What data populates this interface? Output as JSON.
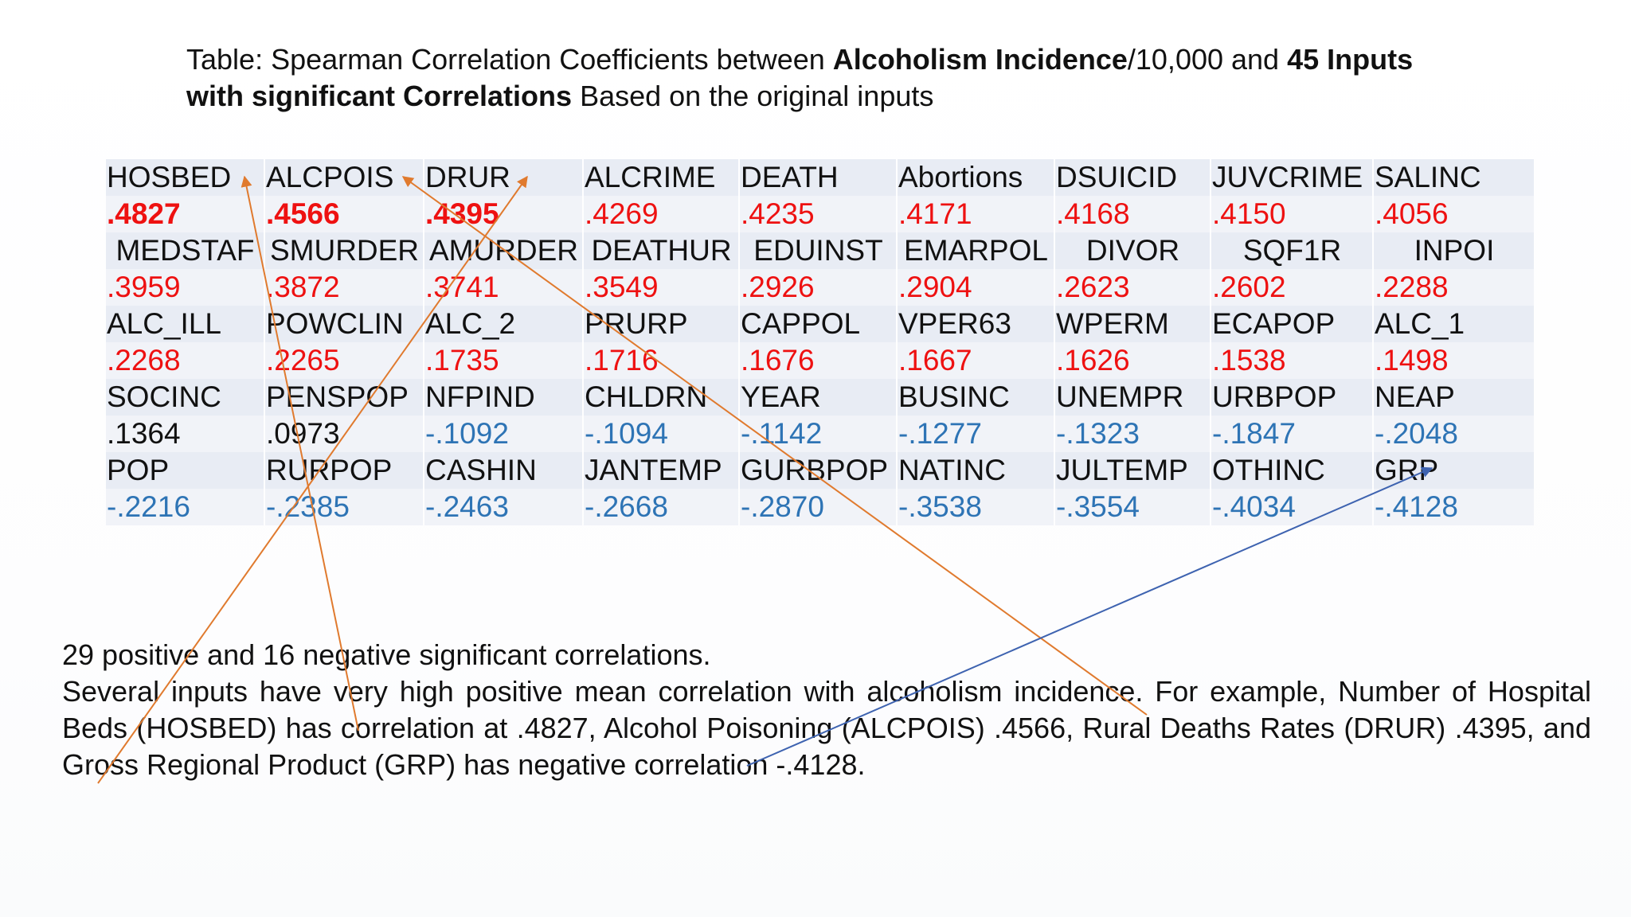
{
  "title": {
    "p1": "Table: Spearman Correlation Coefficients between ",
    "b1": "Alcoholism Incidence",
    "p2": "/10,000 and ",
    "b2": "45 Inputs with significant Correlations",
    "p3": " Based on the original inputs"
  },
  "table": {
    "rows": [
      {
        "names": [
          "HOSBED",
          "ALCPOIS",
          "DRUR",
          "ALCRIME",
          "DEATH",
          "Abortions",
          "DSUICID",
          "JUVCRIME",
          "SALINC"
        ],
        "values": [
          ".4827",
          ".4566",
          ".4395",
          ".4269",
          ".4235",
          ".4171",
          ".4168",
          ".4150",
          ".4056"
        ],
        "value_kinds": [
          "pos-bold",
          "pos-bold",
          "pos-bold",
          "pos",
          "pos",
          "pos",
          "pos",
          "pos",
          "pos"
        ]
      },
      {
        "names": [
          "MEDSTAF",
          "SMURDER",
          "AMURDER",
          "DEATHUR",
          "EDUINST",
          "EMARPOL",
          "DIVOR",
          "SQF1R",
          "INPOI"
        ],
        "values": [
          ".3959",
          ".3872",
          ".3741",
          ".3549",
          ".2926",
          ".2904",
          ".2623",
          ".2602",
          ".2288"
        ],
        "value_kinds": [
          "pos",
          "pos",
          "pos",
          "pos",
          "pos",
          "pos",
          "pos",
          "pos",
          "pos"
        ]
      },
      {
        "names": [
          "ALC_ILL",
          "POWCLIN",
          "ALC_2",
          "PRURP",
          "CAPPOL",
          "VPER63",
          "WPERM",
          "ECAPOP",
          "ALC_1"
        ],
        "values": [
          ".2268",
          ".2265",
          ".1735",
          ".1716",
          ".1676",
          ".1667",
          ".1626",
          ".1538",
          ".1498"
        ],
        "value_kinds": [
          "pos",
          "pos",
          "pos",
          "pos",
          "pos",
          "pos",
          "pos",
          "pos",
          "pos"
        ]
      },
      {
        "names": [
          "SOCINC",
          "PENSPOP",
          "NFPIND",
          "CHLDRN",
          "YEAR",
          "BUSINC",
          "UNEMPR",
          "URBPOP",
          "NEAP"
        ],
        "values": [
          ".1364",
          ".0973",
          "-.1092",
          "-.1094",
          "-.1142",
          "-.1277",
          "-.1323",
          "-.1847",
          "-.2048"
        ],
        "value_kinds": [
          "neu",
          "neu",
          "neg",
          "neg",
          "neg",
          "neg",
          "neg",
          "neg",
          "neg"
        ]
      },
      {
        "names": [
          "POP",
          "RURPOP",
          "CASHIN",
          "JANTEMP",
          "GURBPOP",
          "NATINC",
          "JULTEMP",
          "OTHINC",
          "GRP"
        ],
        "values": [
          "-.2216",
          "-.2385",
          "-.2463",
          "-.2668",
          "-.2870",
          "-.3538",
          "-.3554",
          "-.4034",
          "-.4128"
        ],
        "value_kinds": [
          "neg",
          "neg",
          "neg",
          "neg",
          "neg",
          "neg",
          "neg",
          "neg",
          "neg"
        ]
      }
    ]
  },
  "body": {
    "line1": "29 positive and 16 negative significant correlations.",
    "para2": "Several inputs have very high positive mean correlation with alcoholism incidence. For example, Number of Hospital Beds (HOSBED) has correlation at .4827, Alcohol Poisoning (ALCPOIS) .4566, Rural Deaths Rates (DRUR) .4395, and Gross Regional Product (GRP) has negative correlation -.4128."
  },
  "colors": {
    "positive": "#ee1111",
    "negative": "#2e74b5",
    "arrow_orange": "#e07a2e",
    "arrow_blue": "#3e63b0"
  }
}
